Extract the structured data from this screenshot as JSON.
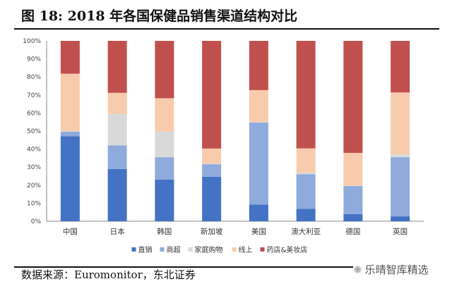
{
  "title": "图  18:  2018 年各国保健品销售渠道结构对比",
  "source": "数据来源：Euromonitor，东北证券",
  "watermark": "乐晴智库精选",
  "chart_data": {
    "type": "bar",
    "stacked": true,
    "categories": [
      "中国",
      "日本",
      "韩国",
      "新加坡",
      "美国",
      "澳大利亚",
      "德国",
      "英国"
    ],
    "series": [
      {
        "name": "直销",
        "color": "#4472C4",
        "values": [
          47.1,
          29.0,
          23.1,
          24.7,
          9.2,
          6.9,
          4.0,
          2.7
        ]
      },
      {
        "name": "商超",
        "color": "#8FAADC",
        "values": [
          2.5,
          13.0,
          12.4,
          6.9,
          45.5,
          19.2,
          15.5,
          32.8
        ]
      },
      {
        "name": "家庭购物",
        "color": "#D9D9D9",
        "values": [
          0.4,
          17.5,
          14.2,
          0.4,
          0.3,
          0.9,
          0.3,
          1.6
        ]
      },
      {
        "name": "线上",
        "color": "#F8CBAD",
        "values": [
          31.8,
          11.7,
          18.5,
          8.3,
          17.7,
          13.4,
          18.1,
          34.3
        ]
      },
      {
        "name": "药店&美妆店",
        "color": "#C0504D",
        "values": [
          18.2,
          28.8,
          31.8,
          59.7,
          27.3,
          59.6,
          62.1,
          28.6
        ]
      }
    ],
    "yticks": [
      "0%",
      "10%",
      "20%",
      "30%",
      "40%",
      "50%",
      "60%",
      "70%",
      "80%",
      "90%",
      "100%"
    ],
    "ylim": [
      0,
      100
    ],
    "grid": false,
    "legend": "bottom"
  }
}
